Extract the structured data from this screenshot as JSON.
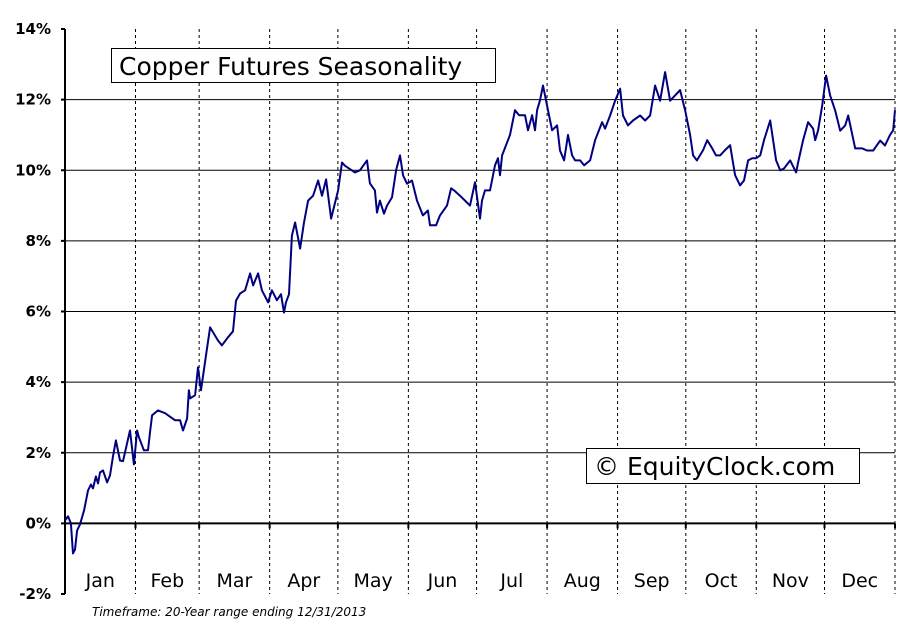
{
  "chart_data": {
    "type": "line",
    "title": "Copper Futures Seasonality",
    "watermark": "© EquityClock.com",
    "footnote": "Timeframe: 20-Year range ending 12/31/2013",
    "x_unit": "day of year",
    "xlim": [
      0,
      365
    ],
    "ylim": [
      -2,
      14
    ],
    "yticks": [
      -2,
      0,
      2,
      4,
      6,
      8,
      10,
      12,
      14
    ],
    "ytick_labels": [
      "-2%",
      "0%",
      "2%",
      "4%",
      "6%",
      "8%",
      "10%",
      "12%",
      "14%"
    ],
    "months": [
      "Jan",
      "Feb",
      "Mar",
      "Apr",
      "May",
      "Jun",
      "Jul",
      "Aug",
      "Sep",
      "Oct",
      "Nov",
      "Dec"
    ],
    "month_start_days": [
      0,
      31,
      59,
      90,
      120,
      151,
      181,
      212,
      243,
      273,
      304,
      334,
      365
    ],
    "grid": {
      "horizontal": "solid",
      "vertical": "dashed at month boundaries"
    },
    "line_color": "#000080",
    "series": [
      {
        "x": [
          0,
          1.3,
          2.6,
          3.5,
          4.4,
          5.3,
          6.6,
          8.4,
          10.1,
          11.4,
          12.3,
          13.6,
          14.5,
          15.4,
          16.7,
          18.5,
          19.8,
          21.1,
          22.4,
          24.2,
          25.5,
          27.3,
          28.6,
          30.3,
          31.7,
          32.5,
          34.7,
          36.5,
          37.4,
          38.3,
          40.9,
          44,
          48.4,
          50.6,
          51.9,
          53.7,
          54.5,
          55,
          57.2,
          58.5,
          59.8,
          62,
          63.8,
          67.3,
          69,
          71.7,
          73.9,
          75.2,
          77,
          79.2,
          81.4,
          82.7,
          84.9,
          86.6,
          89.3,
          91,
          93.2,
          95,
          96.3,
          97.2,
          98.5,
          99.8,
          101.2,
          103.4,
          105.1,
          106.9,
          109.1,
          111.3,
          113,
          114.8,
          117,
          120.1,
          121.8,
          123.1,
          127.5,
          129.7,
          132.8,
          134.1,
          136.3,
          137.2,
          138.5,
          140.3,
          141.6,
          143.8,
          145.6,
          147.3,
          148.7,
          150.4,
          152.6,
          154.8,
          157.4,
          159.6,
          160.5,
          163.2,
          164.9,
          168,
          169.8,
          171.1,
          173.7,
          175.9,
          178.1,
          180.3,
          182.5,
          183.4,
          184.7,
          186.9,
          189.1,
          190.4,
          191.3,
          192.2,
          195.7,
          197.9,
          199.7,
          202.3,
          203.6,
          205.4,
          206.7,
          207.6,
          208.9,
          210.2,
          212.4,
          214.2,
          216.4,
          217.7,
          219.5,
          221.2,
          223,
          224.3,
          226.5,
          228.3,
          230.9,
          233.1,
          236.2,
          237.5,
          239.7,
          241.9,
          244.1,
          245.4,
          247.6,
          249.8,
          252.9,
          255.1,
          257.3,
          259.5,
          261.7,
          263.9,
          266.1,
          268.3,
          270.5,
          272.7,
          274.9,
          276.2,
          277.9,
          280.6,
          282.4,
          284.6,
          286.3,
          288.1,
          290.3,
          292.5,
          294.7,
          296.9,
          298.6,
          300.4,
          302.2,
          303.9,
          305.7,
          307.4,
          310.1,
          312.7,
          314.5,
          316.2,
          318.9,
          321.5,
          322.4,
          324.6,
          326.8,
          329,
          329.9,
          331.2,
          333,
          334.7,
          336.5,
          338.7,
          340.9,
          343.1,
          344.4,
          347.5,
          350.6,
          352.7,
          355.4,
          358.5,
          360.6,
          362.8,
          364.2,
          365
        ],
        "y": [
          0.08,
          0.2,
          0,
          -0.85,
          -0.74,
          -0.2,
          -0.03,
          0.37,
          0.93,
          1.1,
          0.99,
          1.33,
          1.13,
          1.44,
          1.5,
          1.16,
          1.36,
          1.9,
          2.35,
          1.78,
          1.76,
          2.27,
          2.63,
          1.67,
          2.63,
          2.44,
          2.07,
          2.07,
          2.58,
          3.06,
          3.2,
          3.12,
          2.92,
          2.92,
          2.63,
          2.97,
          3.77,
          3.54,
          3.63,
          4.42,
          3.77,
          4.76,
          5.55,
          5.18,
          5.04,
          5.27,
          5.44,
          6.31,
          6.51,
          6.6,
          7.08,
          6.74,
          7.08,
          6.6,
          6.26,
          6.6,
          6.32,
          6.49,
          5.97,
          6.26,
          6.49,
          8.15,
          8.52,
          7.78,
          8.52,
          9.14,
          9.28,
          9.71,
          9.28,
          9.74,
          8.63,
          9.43,
          10.22,
          10.13,
          9.94,
          10,
          10.28,
          9.63,
          9.43,
          8.8,
          9.14,
          8.77,
          9,
          9.23,
          10,
          10.42,
          9.85,
          9.62,
          9.71,
          9.14,
          8.72,
          8.86,
          8.44,
          8.44,
          8.72,
          9,
          9.49,
          9.43,
          9.28,
          9.14,
          9,
          9.66,
          8.63,
          9.14,
          9.43,
          9.43,
          10.14,
          10.34,
          9.86,
          10.42,
          11,
          11.7,
          11.56,
          11.56,
          11.13,
          11.56,
          11.13,
          11.7,
          11.98,
          12.4,
          11.7,
          11.13,
          11.27,
          10.56,
          10.28,
          11,
          10.42,
          10.28,
          10.28,
          10.14,
          10.28,
          10.85,
          11.36,
          11.18,
          11.55,
          11.97,
          12.31,
          11.55,
          11.27,
          11.41,
          11.55,
          11.41,
          11.55,
          12.4,
          11.97,
          12.78,
          11.97,
          12.12,
          12.27,
          11.7,
          11,
          10.42,
          10.28,
          10.57,
          10.85,
          10.62,
          10.42,
          10.42,
          10.57,
          10.71,
          9.86,
          9.57,
          9.71,
          10.28,
          10.34,
          10.34,
          10.42,
          10.85,
          11.41,
          10.28,
          10,
          10.05,
          10.28,
          9.94,
          10.22,
          10.85,
          11.36,
          11.18,
          10.85,
          11.13,
          11.83,
          12.68,
          12.11,
          11.69,
          11.12,
          11.27,
          11.55,
          10.62,
          10.62,
          10.56,
          10.56,
          10.84,
          10.7,
          11,
          11.13,
          11.7
        ]
      }
    ]
  }
}
